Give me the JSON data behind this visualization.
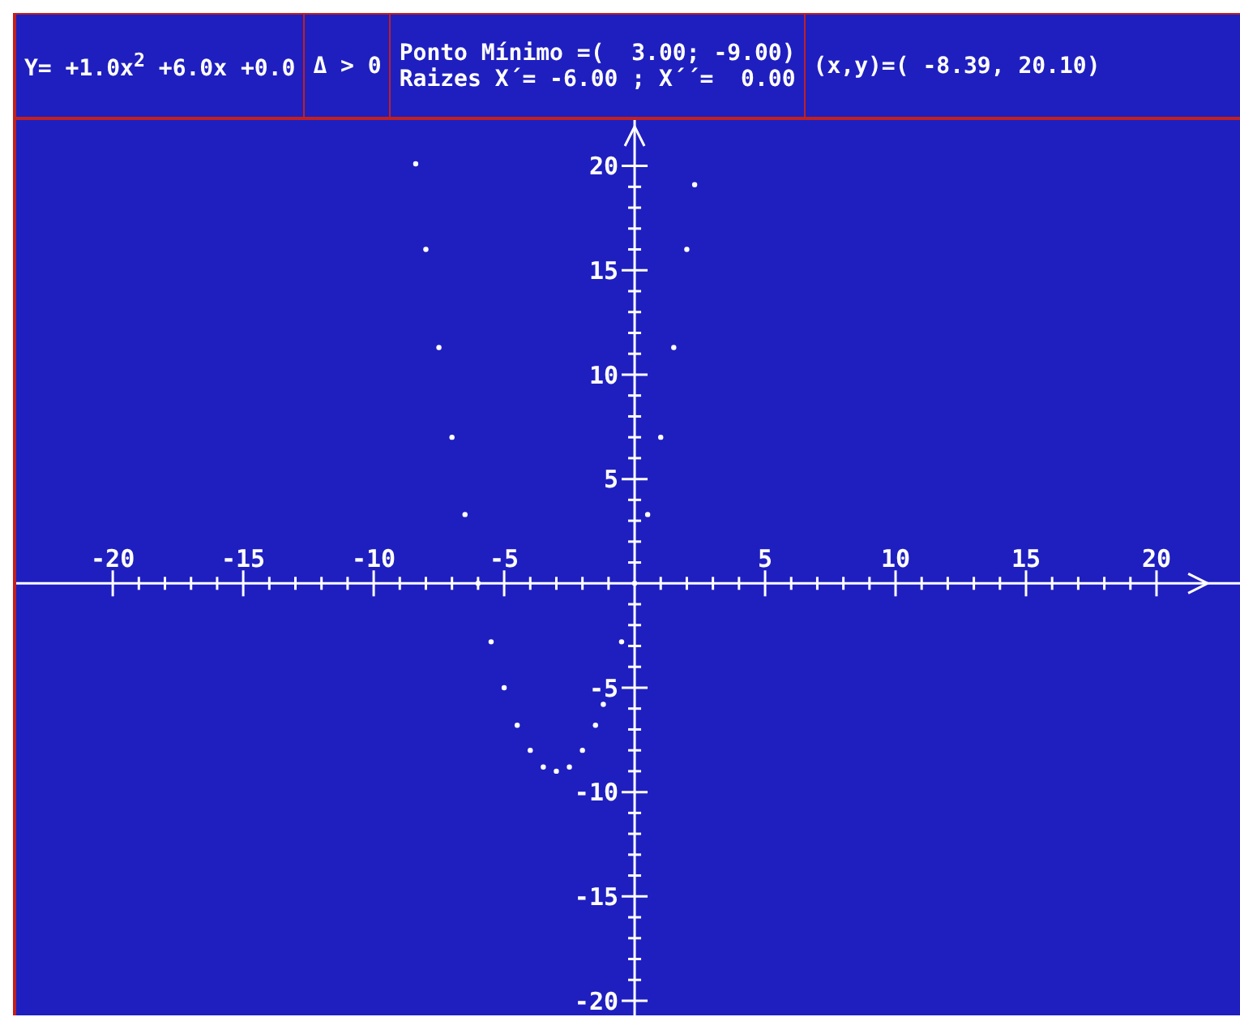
{
  "chart_data": {
    "type": "scatter",
    "title": "Y= +1.0x$^{2}$ +6.0x +0.0",
    "annotations": [
      "Δ > 0",
      "Ponto Mínimo =(  3.00; -9.00)",
      "Raizes X´= -6.00 ; X´´=  0.00",
      "(x,y)=( -8.39, 20.10)"
    ],
    "x": [
      -8.39,
      -8,
      -7.5,
      -7,
      -6.5,
      -6,
      -5.5,
      -5,
      -4.5,
      -4,
      -3.5,
      -3,
      -2.5,
      -2,
      -1.5,
      -1.2,
      -0.5,
      0,
      0.5,
      1,
      1.5,
      2,
      2.3
    ],
    "series": [
      {
        "color": "#ffffff",
        "values": [
          20.1,
          16,
          11.3,
          7,
          3.3,
          0,
          -2.8,
          -5,
          -6.8,
          -8,
          -8.8,
          -9,
          -8.8,
          -8,
          -6.8,
          -5.8,
          -2.8,
          0,
          3.3,
          7,
          11.3,
          16,
          19.1
        ]
      }
    ],
    "marker": "circle",
    "xlim": [
      -23.7,
      23.2
    ],
    "ylim": [
      -20.7,
      22.2
    ],
    "xticks": [
      -20,
      {
        "value": -19,
        "label": null
      },
      {
        "value": -18,
        "label": null
      },
      {
        "value": -17,
        "label": null
      },
      {
        "value": -16,
        "label": null
      },
      -15,
      {
        "value": -14,
        "label": null
      },
      {
        "value": -13,
        "label": null
      },
      {
        "value": -12,
        "label": null
      },
      {
        "value": -11,
        "label": null
      },
      -10,
      {
        "value": -9,
        "label": null
      },
      {
        "value": -8,
        "label": null
      },
      {
        "value": -7,
        "label": null
      },
      {
        "value": -6,
        "label": null
      },
      -5,
      {
        "value": -4,
        "label": null
      },
      {
        "value": -3,
        "label": null
      },
      {
        "value": -2,
        "label": null
      },
      {
        "value": -1,
        "label": null
      },
      {
        "value": 1,
        "label": null
      },
      {
        "value": 2,
        "label": null
      },
      {
        "value": 3,
        "label": null
      },
      {
        "value": 4,
        "label": null
      },
      5,
      {
        "value": 6,
        "label": null
      },
      {
        "value": 7,
        "label": null
      },
      {
        "value": 8,
        "label": null
      },
      {
        "value": 9,
        "label": null
      },
      10,
      {
        "value": 11,
        "label": null
      },
      {
        "value": 12,
        "label": null
      },
      {
        "value": 13,
        "label": null
      },
      {
        "value": 14,
        "label": null
      },
      15,
      {
        "value": 16,
        "label": null
      },
      {
        "value": 17,
        "label": null
      },
      {
        "value": 18,
        "label": null
      },
      {
        "value": 19,
        "label": null
      },
      20
    ],
    "yticks": [
      -20,
      {
        "value": -19,
        "label": null
      },
      {
        "value": -18,
        "label": null
      },
      {
        "value": -17,
        "label": null
      },
      {
        "value": -16,
        "label": null
      },
      -15,
      {
        "value": -14,
        "label": null
      },
      {
        "value": -13,
        "label": null
      },
      {
        "value": -12,
        "label": null
      },
      {
        "value": -11,
        "label": null
      },
      -10,
      {
        "value": -9,
        "label": null
      },
      {
        "value": -8,
        "label": null
      },
      {
        "value": -7,
        "label": null
      },
      {
        "value": -6,
        "label": null
      },
      -5,
      {
        "value": -4,
        "label": null
      },
      {
        "value": -3,
        "label": null
      },
      {
        "value": -2,
        "label": null
      },
      {
        "value": -1,
        "label": null
      },
      {
        "value": 1,
        "label": null
      },
      {
        "value": 2,
        "label": null
      },
      {
        "value": 3,
        "label": null
      },
      {
        "value": 4,
        "label": null
      },
      5,
      {
        "value": 6,
        "label": null
      },
      {
        "value": 7,
        "label": null
      },
      {
        "value": 8,
        "label": null
      },
      {
        "value": 9,
        "label": null
      },
      10,
      {
        "value": 11,
        "label": null
      },
      {
        "value": 12,
        "label": null
      },
      {
        "value": 13,
        "label": null
      },
      {
        "value": 14,
        "label": null
      },
      15,
      {
        "value": 16,
        "label": null
      },
      {
        "value": 17,
        "label": null
      },
      {
        "value": 18,
        "label": null
      },
      {
        "value": 19,
        "label": null
      },
      20
    ]
  }
}
